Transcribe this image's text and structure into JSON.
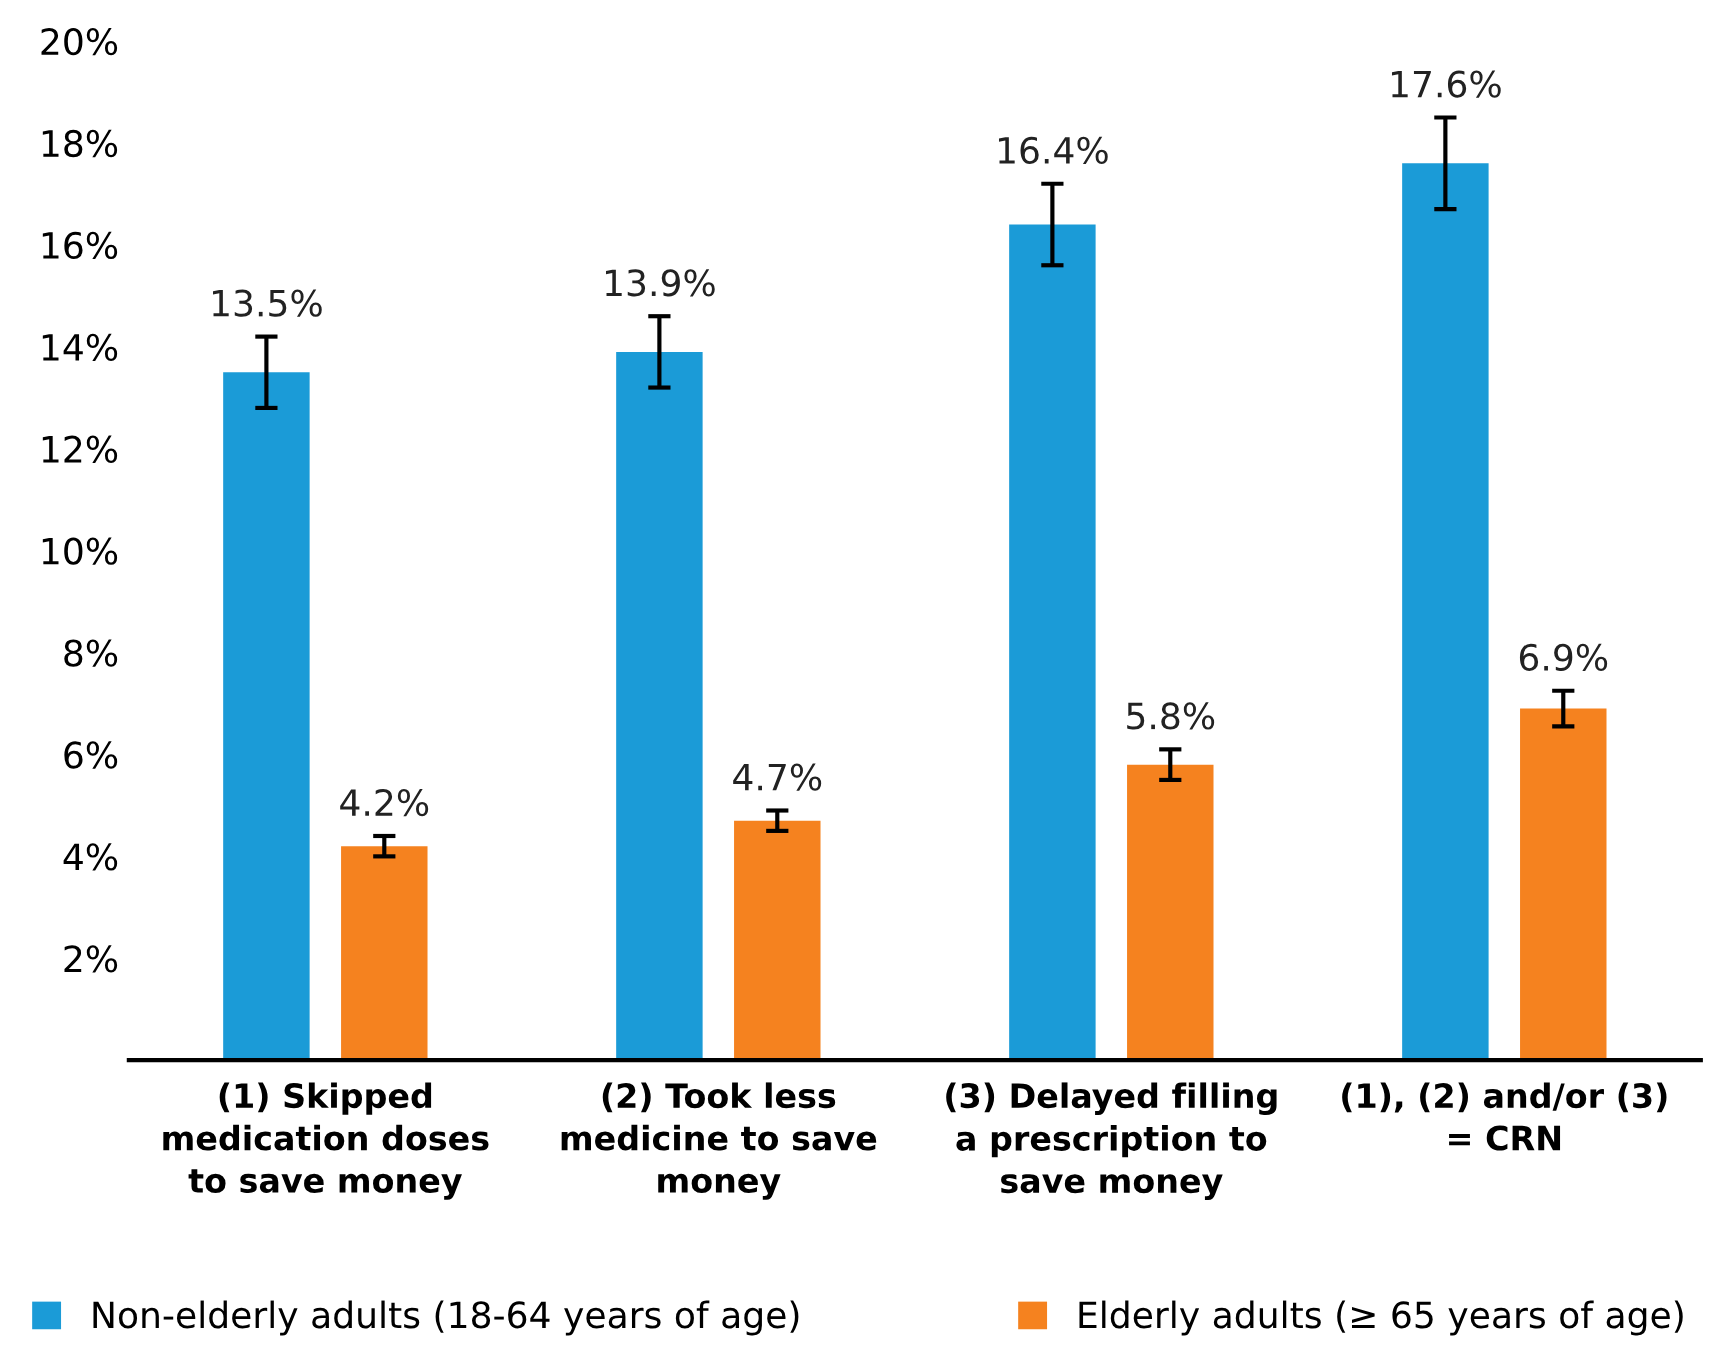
{
  "chart_data": {
    "type": "bar",
    "categories": [
      "(1) Skipped medication doses to save money",
      "(2) Took less medicine to save money",
      "(3) Delayed filling a prescription to save money",
      "(1), (2) and/or (3) = CRN"
    ],
    "series": [
      {
        "name": "Non-elderly adults (18-64 years of age)",
        "color": "#1b9bd7",
        "values": [
          13.5,
          13.9,
          16.4,
          17.6
        ],
        "errors": [
          0.7,
          0.7,
          0.8,
          0.9
        ],
        "value_labels": [
          "13.5%",
          "13.9%",
          "16.4%",
          "17.6%"
        ]
      },
      {
        "name": "Elderly adults (≥ 65 years of age)",
        "color": "#f5821f",
        "values": [
          4.2,
          4.7,
          5.8,
          6.9
        ],
        "errors": [
          0.2,
          0.2,
          0.3,
          0.35
        ],
        "value_labels": [
          "4.2%",
          "4.7%",
          "5.8%",
          "6.9%"
        ]
      }
    ],
    "ylim": [
      0,
      20
    ],
    "yticks": [
      {
        "value": 2,
        "label": "2%"
      },
      {
        "value": 4,
        "label": "4%"
      },
      {
        "value": 6,
        "label": "6%"
      },
      {
        "value": 8,
        "label": "8%"
      },
      {
        "value": 10,
        "label": "10%"
      },
      {
        "value": 12,
        "label": "12%"
      },
      {
        "value": 14,
        "label": "14%"
      },
      {
        "value": 16,
        "label": "16%"
      },
      {
        "value": 18,
        "label": "18%"
      },
      {
        "value": 20,
        "label": "20%"
      }
    ],
    "grid": false,
    "legend": "bottom"
  }
}
